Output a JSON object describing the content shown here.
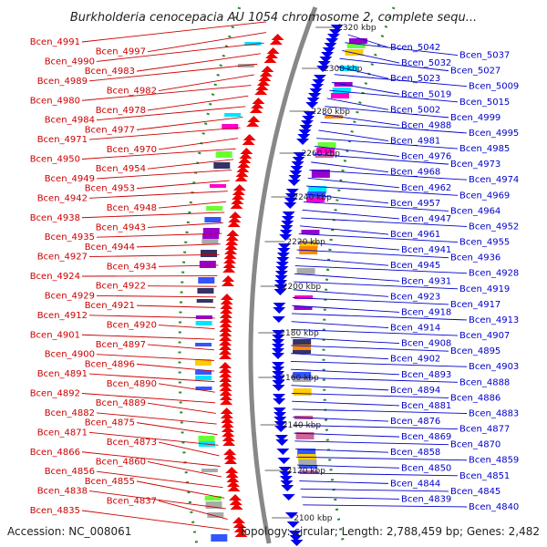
{
  "title": "Burkholderia cenocepacia AU 1054 chromosome 2, complete sequ...",
  "footer": {
    "accession": "Accession: NC_008061",
    "summary": "Topology: circular; Length: 2,788,459 bp; Genes: 2,482"
  },
  "colors": {
    "left_labels": "#cc0000",
    "right_labels": "#0000cc",
    "backbone": "#888888",
    "tick_dots": "#2a8a2a"
  },
  "ticks": [
    "2320 kbp",
    "2300 kbp",
    "2280 kbp",
    "2260 kbp",
    "2240 kbp",
    "2220 kbp",
    "2200 kbp",
    "2180 kbp",
    "2160 kbp",
    "2140 kbp",
    "2120 kbp",
    "2100 kbp"
  ],
  "left_genes": [
    "Bcen_4991",
    "Bcen_4997",
    "Bcen_4990",
    "Bcen_4983",
    "Bcen_4989",
    "Bcen_4982",
    "Bcen_4980",
    "Bcen_4978",
    "Bcen_4984",
    "Bcen_4977",
    "Bcen_4971",
    "Bcen_4970",
    "Bcen_4950",
    "Bcen_4954",
    "Bcen_4949",
    "Bcen_4953",
    "Bcen_4942",
    "Bcen_4948",
    "Bcen_4938",
    "Bcen_4943",
    "Bcen_4935",
    "Bcen_4944",
    "Bcen_4927",
    "Bcen_4934",
    "Bcen_4924",
    "Bcen_4922",
    "Bcen_4929",
    "Bcen_4921",
    "Bcen_4912",
    "Bcen_4920",
    "Bcen_4901",
    "Bcen_4897",
    "Bcen_4900",
    "Bcen_4896",
    "Bcen_4891",
    "Bcen_4890",
    "Bcen_4892",
    "Bcen_4889",
    "Bcen_4882",
    "Bcen_4875",
    "Bcen_4871",
    "Bcen_4873",
    "Bcen_4866",
    "Bcen_4860",
    "Bcen_4856",
    "Bcen_4855",
    "Bcen_4838",
    "Bcen_4837",
    "Bcen_4835"
  ],
  "right_genes": [
    "Bcen_5042",
    "Bcen_5037",
    "Bcen_5032",
    "Bcen_5027",
    "Bcen_5023",
    "Bcen_5009",
    "Bcen_5019",
    "Bcen_5015",
    "Bcen_5002",
    "Bcen_4999",
    "Bcen_4988",
    "Bcen_4995",
    "Bcen_4981",
    "Bcen_4985",
    "Bcen_4976",
    "Bcen_4973",
    "Bcen_4968",
    "Bcen_4974",
    "Bcen_4962",
    "Bcen_4969",
    "Bcen_4957",
    "Bcen_4964",
    "Bcen_4947",
    "Bcen_4952",
    "Bcen_4961",
    "Bcen_4955",
    "Bcen_4941",
    "Bcen_4936",
    "Bcen_4945",
    "Bcen_4928",
    "Bcen_4931",
    "Bcen_4919",
    "Bcen_4923",
    "Bcen_4917",
    "Bcen_4918",
    "Bcen_4913",
    "Bcen_4914",
    "Bcen_4907",
    "Bcen_4908",
    "Bcen_4895",
    "Bcen_4902",
    "Bcen_4903",
    "Bcen_4893",
    "Bcen_4888",
    "Bcen_4894",
    "Bcen_4886",
    "Bcen_4881",
    "Bcen_4883",
    "Bcen_4876",
    "Bcen_4877",
    "Bcen_4869",
    "Bcen_4870",
    "Bcen_4858",
    "Bcen_4859",
    "Bcen_4850",
    "Bcen_4851",
    "Bcen_4844",
    "Bcen_4845",
    "Bcen_4839",
    "Bcen_4840"
  ]
}
